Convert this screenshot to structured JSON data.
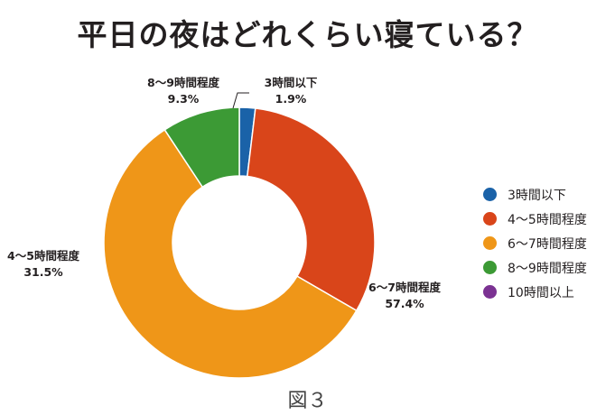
{
  "chart_data": {
    "type": "pie",
    "title": "平日の夜はどれくらい寝ている？",
    "caption": "図３",
    "categories": [
      "3時間以下",
      "4〜5時間程度",
      "6〜7時間程度",
      "8〜9時間程度",
      "10時間以上"
    ],
    "values": [
      1.9,
      31.5,
      57.4,
      9.3,
      0
    ],
    "value_labels": [
      "1.9%",
      "31.5%",
      "57.4%",
      "9.3%",
      ""
    ],
    "colors": [
      "#1a62a8",
      "#d9451a",
      "#ef9618",
      "#3c9a35",
      "#7b3292"
    ],
    "legend_position": "right",
    "donut": true
  }
}
